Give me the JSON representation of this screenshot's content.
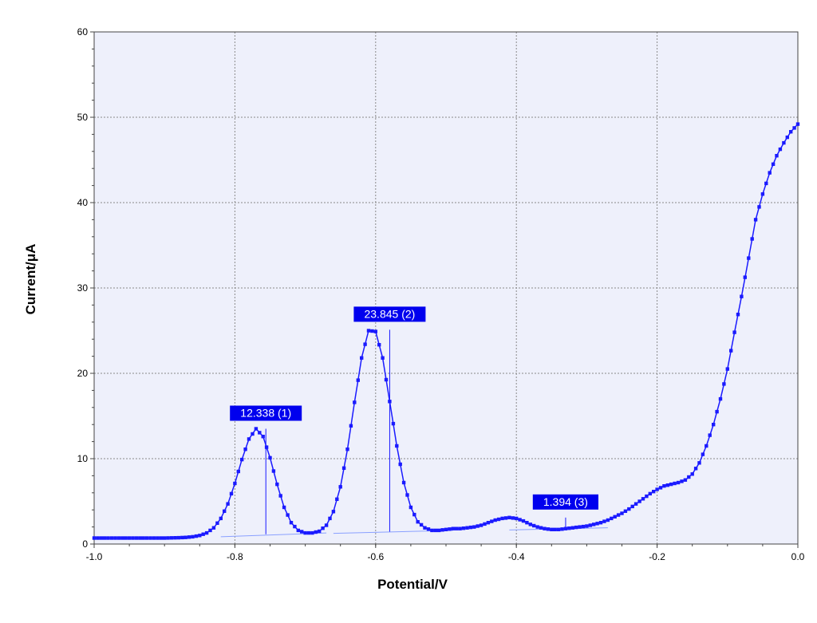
{
  "chart_data": {
    "type": "line",
    "xlabel": "Potential/V",
    "ylabel": "Current/μA",
    "xlim": [
      -1.0,
      0.0
    ],
    "ylim": [
      0,
      60
    ],
    "x_ticks": [
      -1.0,
      -0.8,
      -0.6,
      -0.4,
      -0.2,
      0.0
    ],
    "x_tick_labels": [
      "-1.0",
      "-0.8",
      "-0.6",
      "-0.4",
      "-0.2",
      "0.0"
    ],
    "y_ticks": [
      0,
      10,
      20,
      30,
      40,
      50,
      60
    ],
    "y_tick_labels": [
      "0",
      "10",
      "20",
      "30",
      "40",
      "50",
      "60"
    ],
    "grid": true,
    "colors": {
      "series": "#1a1aff",
      "label_bg": "#0000ee",
      "plot_bg": "#eef0fb",
      "grid": "#8a8a8a"
    },
    "series": [
      {
        "x": [
          -1.0,
          -0.99,
          -0.98,
          -0.97,
          -0.96,
          -0.95,
          -0.94,
          -0.93,
          -0.92,
          -0.91,
          -0.9,
          -0.89,
          -0.88,
          -0.87,
          -0.86,
          -0.85,
          -0.84,
          -0.83,
          -0.82,
          -0.81,
          -0.8,
          -0.79,
          -0.78,
          -0.77,
          -0.76,
          -0.75,
          -0.74,
          -0.73,
          -0.72,
          -0.71,
          -0.7,
          -0.69,
          -0.68,
          -0.67,
          -0.66,
          -0.65,
          -0.64,
          -0.63,
          -0.62,
          -0.61,
          -0.6,
          -0.59,
          -0.58,
          -0.57,
          -0.56,
          -0.55,
          -0.54,
          -0.53,
          -0.52,
          -0.51,
          -0.5,
          -0.49,
          -0.48,
          -0.47,
          -0.46,
          -0.45,
          -0.44,
          -0.43,
          -0.42,
          -0.41,
          -0.4,
          -0.39,
          -0.38,
          -0.37,
          -0.36,
          -0.35,
          -0.34,
          -0.33,
          -0.32,
          -0.31,
          -0.3,
          -0.29,
          -0.28,
          -0.27,
          -0.26,
          -0.25,
          -0.24,
          -0.23,
          -0.22,
          -0.21,
          -0.2,
          -0.19,
          -0.18,
          -0.17,
          -0.16,
          -0.15,
          -0.14,
          -0.13,
          -0.12,
          -0.11,
          -0.1,
          -0.09,
          -0.08,
          -0.07,
          -0.06,
          -0.05,
          -0.04,
          -0.03,
          -0.02,
          -0.01,
          0.0
        ],
        "y": [
          0.7,
          0.7,
          0.7,
          0.7,
          0.7,
          0.7,
          0.7,
          0.7,
          0.7,
          0.7,
          0.7,
          0.72,
          0.74,
          0.78,
          0.85,
          1.0,
          1.3,
          1.9,
          3.0,
          4.7,
          7.1,
          9.9,
          12.3,
          13.5,
          12.6,
          10.1,
          7.0,
          4.3,
          2.5,
          1.6,
          1.3,
          1.3,
          1.5,
          2.2,
          3.8,
          6.7,
          11.1,
          16.6,
          21.8,
          25.0,
          24.9,
          21.8,
          16.7,
          11.5,
          7.2,
          4.3,
          2.6,
          1.9,
          1.6,
          1.6,
          1.7,
          1.8,
          1.8,
          1.9,
          2.0,
          2.2,
          2.5,
          2.8,
          3.0,
          3.1,
          3.0,
          2.7,
          2.3,
          2.0,
          1.8,
          1.7,
          1.7,
          1.8,
          1.9,
          2.0,
          2.1,
          2.3,
          2.5,
          2.8,
          3.2,
          3.6,
          4.1,
          4.7,
          5.3,
          5.9,
          6.4,
          6.8,
          7.0,
          7.2,
          7.5,
          8.2,
          9.5,
          11.5,
          14.0,
          17.0,
          20.5,
          24.8,
          29.0,
          33.5,
          38.0,
          41.0,
          43.5,
          45.5,
          47.0,
          48.3,
          49.2
        ],
        "x_shift": 0.005
      }
    ],
    "peaks": [
      {
        "label": "12.338 (1)",
        "x": -0.756,
        "y_top": 13.5,
        "y_base": 1.15
      },
      {
        "label": "23.845 (2)",
        "x": -0.58,
        "y_top": 25.1,
        "y_base": 1.45
      },
      {
        "label": "1.394 (3)",
        "x": -0.33,
        "y_top": 3.1,
        "y_base": 1.75
      }
    ],
    "baselines": [
      {
        "x": [
          -0.82,
          -0.67
        ],
        "y": [
          0.85,
          1.3
        ]
      },
      {
        "x": [
          -0.66,
          -0.49
        ],
        "y": [
          1.25,
          1.6
        ]
      },
      {
        "x": [
          -0.41,
          -0.27
        ],
        "y": [
          1.65,
          1.9
        ]
      }
    ]
  }
}
